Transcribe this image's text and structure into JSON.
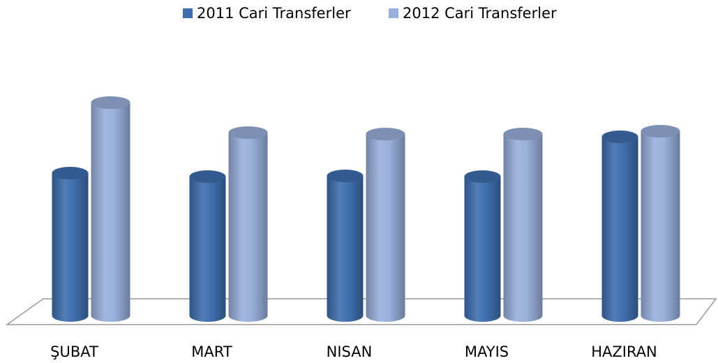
{
  "chart_data": {
    "type": "bar3d",
    "categories": [
      "ŞUBAT",
      "MART",
      "NISAN",
      "MAYIS",
      "HAZIRAN"
    ],
    "series": [
      {
        "name": "2011 Cari Transferler",
        "color": "#3f6faf",
        "values": [
          204,
          199,
          200,
          199,
          256
        ]
      },
      {
        "name": "2012  Cari Transferler",
        "color": "#99b0dc",
        "values": [
          305,
          262,
          260,
          260,
          264
        ]
      }
    ],
    "ylim": [
      0,
      330
    ],
    "legend": "top"
  }
}
